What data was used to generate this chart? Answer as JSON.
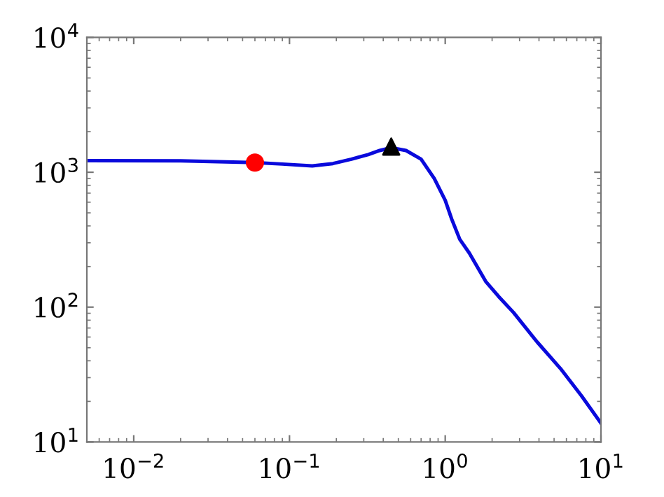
{
  "chart_data": {
    "type": "line",
    "log": "xy",
    "xlim": [
      0.005,
      10
    ],
    "ylim": [
      10,
      10000
    ],
    "xticks": [
      {
        "value": 0.01,
        "label": "10$^{−2}$"
      },
      {
        "value": 0.1,
        "label": "10$^{−1}$"
      },
      {
        "value": 1,
        "label": "10$^{0}$"
      },
      {
        "value": 10,
        "label": "10$^{1}$"
      }
    ],
    "yticks": [
      {
        "value": 10,
        "label": "10$^{1}$"
      },
      {
        "value": 100,
        "label": "10$^{2}$"
      },
      {
        "value": 1000,
        "label": "10$^{3}$"
      },
      {
        "value": 10000,
        "label": "10$^{4}$"
      }
    ],
    "grid": false,
    "series": [
      {
        "color": "#0a0adc",
        "marker": "none",
        "x": [
          0.005,
          0.02,
          0.06,
          0.09,
          0.14,
          0.19,
          0.25,
          0.32,
          0.38,
          0.45,
          0.56,
          0.7,
          0.85,
          1.0,
          1.1,
          1.24,
          1.43,
          1.82,
          2.2,
          2.75,
          3.9,
          5.5,
          7.5,
          10
        ],
        "values": [
          1220,
          1215,
          1180,
          1150,
          1115,
          1160,
          1250,
          1350,
          1450,
          1520,
          1450,
          1250,
          900,
          620,
          450,
          318,
          251,
          155,
          120,
          91,
          55,
          35,
          22,
          13.8
        ]
      },
      {
        "type": "scatter",
        "color": "#ff0000",
        "marker": "circle",
        "x": [
          0.06
        ],
        "values": [
          1180
        ]
      },
      {
        "type": "scatter",
        "color": "#000000",
        "marker": "triangle",
        "x": [
          0.45
        ],
        "values": [
          1550
        ]
      }
    ]
  }
}
